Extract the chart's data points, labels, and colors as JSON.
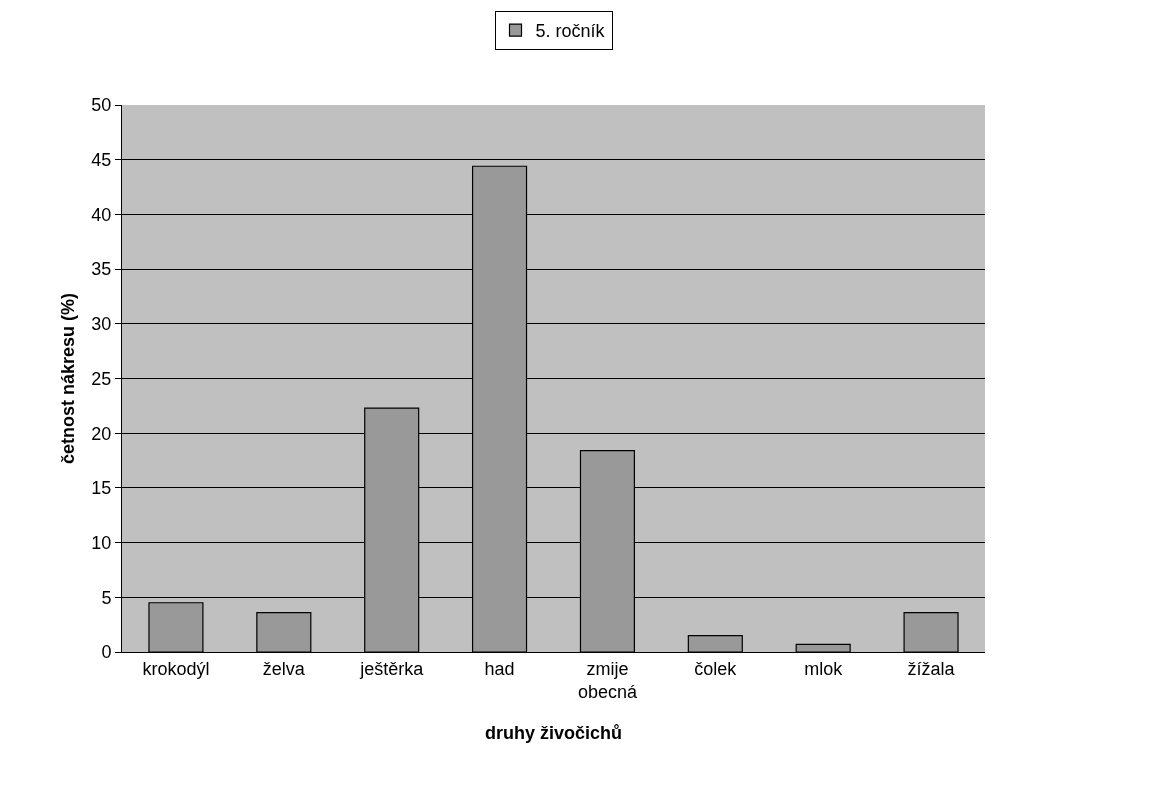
{
  "chart_data": {
    "type": "bar",
    "xlabel": "druhy živočichů",
    "ylabel": "četnost nákresu (%)",
    "categories": [
      "krokodýl",
      "želva",
      "ještěrka",
      "had",
      "zmije obecná",
      "čolek",
      "mlok",
      "žížala"
    ],
    "series": [
      {
        "name": "5. ročník",
        "color": "#999999",
        "values": [
          4.5,
          3.6,
          22.3,
          44.4,
          18.4,
          1.5,
          0.7,
          3.6
        ]
      }
    ],
    "ylim": [
      0,
      50
    ],
    "yticks": [
      0,
      5,
      10,
      15,
      20,
      25,
      30,
      35,
      40,
      45,
      50
    ],
    "grid": "y",
    "legend": "top"
  }
}
